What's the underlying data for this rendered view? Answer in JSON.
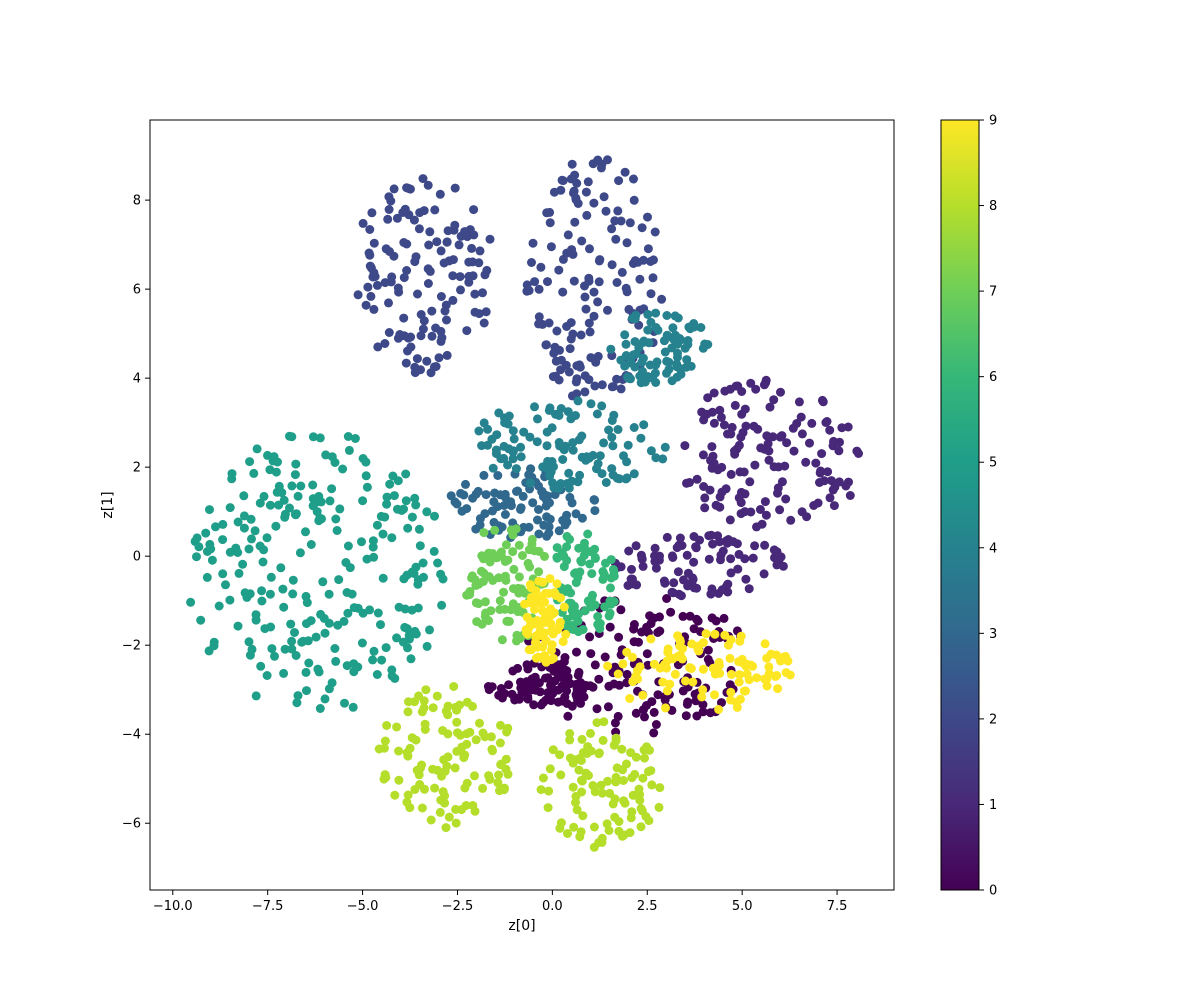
{
  "chart_data": {
    "type": "scatter",
    "title": "",
    "xlabel": "z[0]",
    "ylabel": "z[1]",
    "xlim": [
      -10.6,
      9.0
    ],
    "ylim": [
      -7.5,
      9.8
    ],
    "xticks": [
      -10.0,
      -7.5,
      -5.0,
      -2.5,
      0.0,
      2.5,
      5.0,
      7.5
    ],
    "xtick_labels": [
      "−10.0",
      "−7.5",
      "−5.0",
      "−2.5",
      "0.0",
      "2.5",
      "5.0",
      "7.5"
    ],
    "yticks": [
      -6,
      -4,
      -2,
      0,
      2,
      4,
      6,
      8
    ],
    "ytick_labels": [
      "−6",
      "−4",
      "−2",
      "0",
      "2",
      "4",
      "6",
      "8"
    ],
    "grid": false,
    "colormap": "viridis",
    "colorbar": {
      "min": 0,
      "max": 9,
      "ticks": [
        0,
        1,
        2,
        3,
        4,
        5,
        6,
        7,
        8,
        9
      ],
      "tick_labels": [
        "0",
        "1",
        "2",
        "3",
        "4",
        "5",
        "6",
        "7",
        "8",
        "9"
      ]
    },
    "class_colors": [
      "#440154",
      "#482878",
      "#3e4989",
      "#31688e",
      "#26828e",
      "#1f9e89",
      "#35b779",
      "#6ece58",
      "#b5de2b",
      "#fde725"
    ],
    "clusters": [
      {
        "label": 0,
        "center": [
          2.2,
          -2.4
        ],
        "extent": [
          3.0,
          1.6
        ]
      },
      {
        "label": 0,
        "center": [
          -0.3,
          -2.9
        ],
        "extent": [
          1.4,
          0.5
        ]
      },
      {
        "label": 1,
        "center": [
          5.8,
          2.3
        ],
        "extent": [
          2.6,
          1.7
        ]
      },
      {
        "label": 1,
        "center": [
          3.8,
          -0.2
        ],
        "extent": [
          2.4,
          0.7
        ]
      },
      {
        "label": 2,
        "center": [
          -3.4,
          6.3
        ],
        "extent": [
          1.9,
          2.2
        ]
      },
      {
        "label": 2,
        "center": [
          1.1,
          6.2
        ],
        "extent": [
          1.8,
          2.8
        ]
      },
      {
        "label": 3,
        "center": [
          -0.8,
          1.2
        ],
        "extent": [
          2.0,
          0.8
        ]
      },
      {
        "label": 4,
        "center": [
          0.4,
          2.5
        ],
        "extent": [
          2.8,
          1.0
        ]
      },
      {
        "label": 4,
        "center": [
          2.8,
          4.7
        ],
        "extent": [
          1.4,
          0.9
        ]
      },
      {
        "label": 5,
        "center": [
          -6.2,
          -0.4
        ],
        "extent": [
          3.4,
          3.2
        ]
      },
      {
        "label": 6,
        "center": [
          0.8,
          -0.6
        ],
        "extent": [
          0.9,
          1.2
        ]
      },
      {
        "label": 7,
        "center": [
          -1.2,
          -0.6
        ],
        "extent": [
          1.1,
          1.4
        ]
      },
      {
        "label": 8,
        "center": [
          -2.8,
          -4.5
        ],
        "extent": [
          1.8,
          1.6
        ]
      },
      {
        "label": 8,
        "center": [
          1.3,
          -5.2
        ],
        "extent": [
          1.6,
          1.5
        ]
      },
      {
        "label": 9,
        "center": [
          -0.2,
          -1.4
        ],
        "extent": [
          0.6,
          1.0
        ]
      },
      {
        "label": 9,
        "center": [
          3.9,
          -2.6
        ],
        "extent": [
          2.5,
          0.9
        ]
      }
    ]
  }
}
